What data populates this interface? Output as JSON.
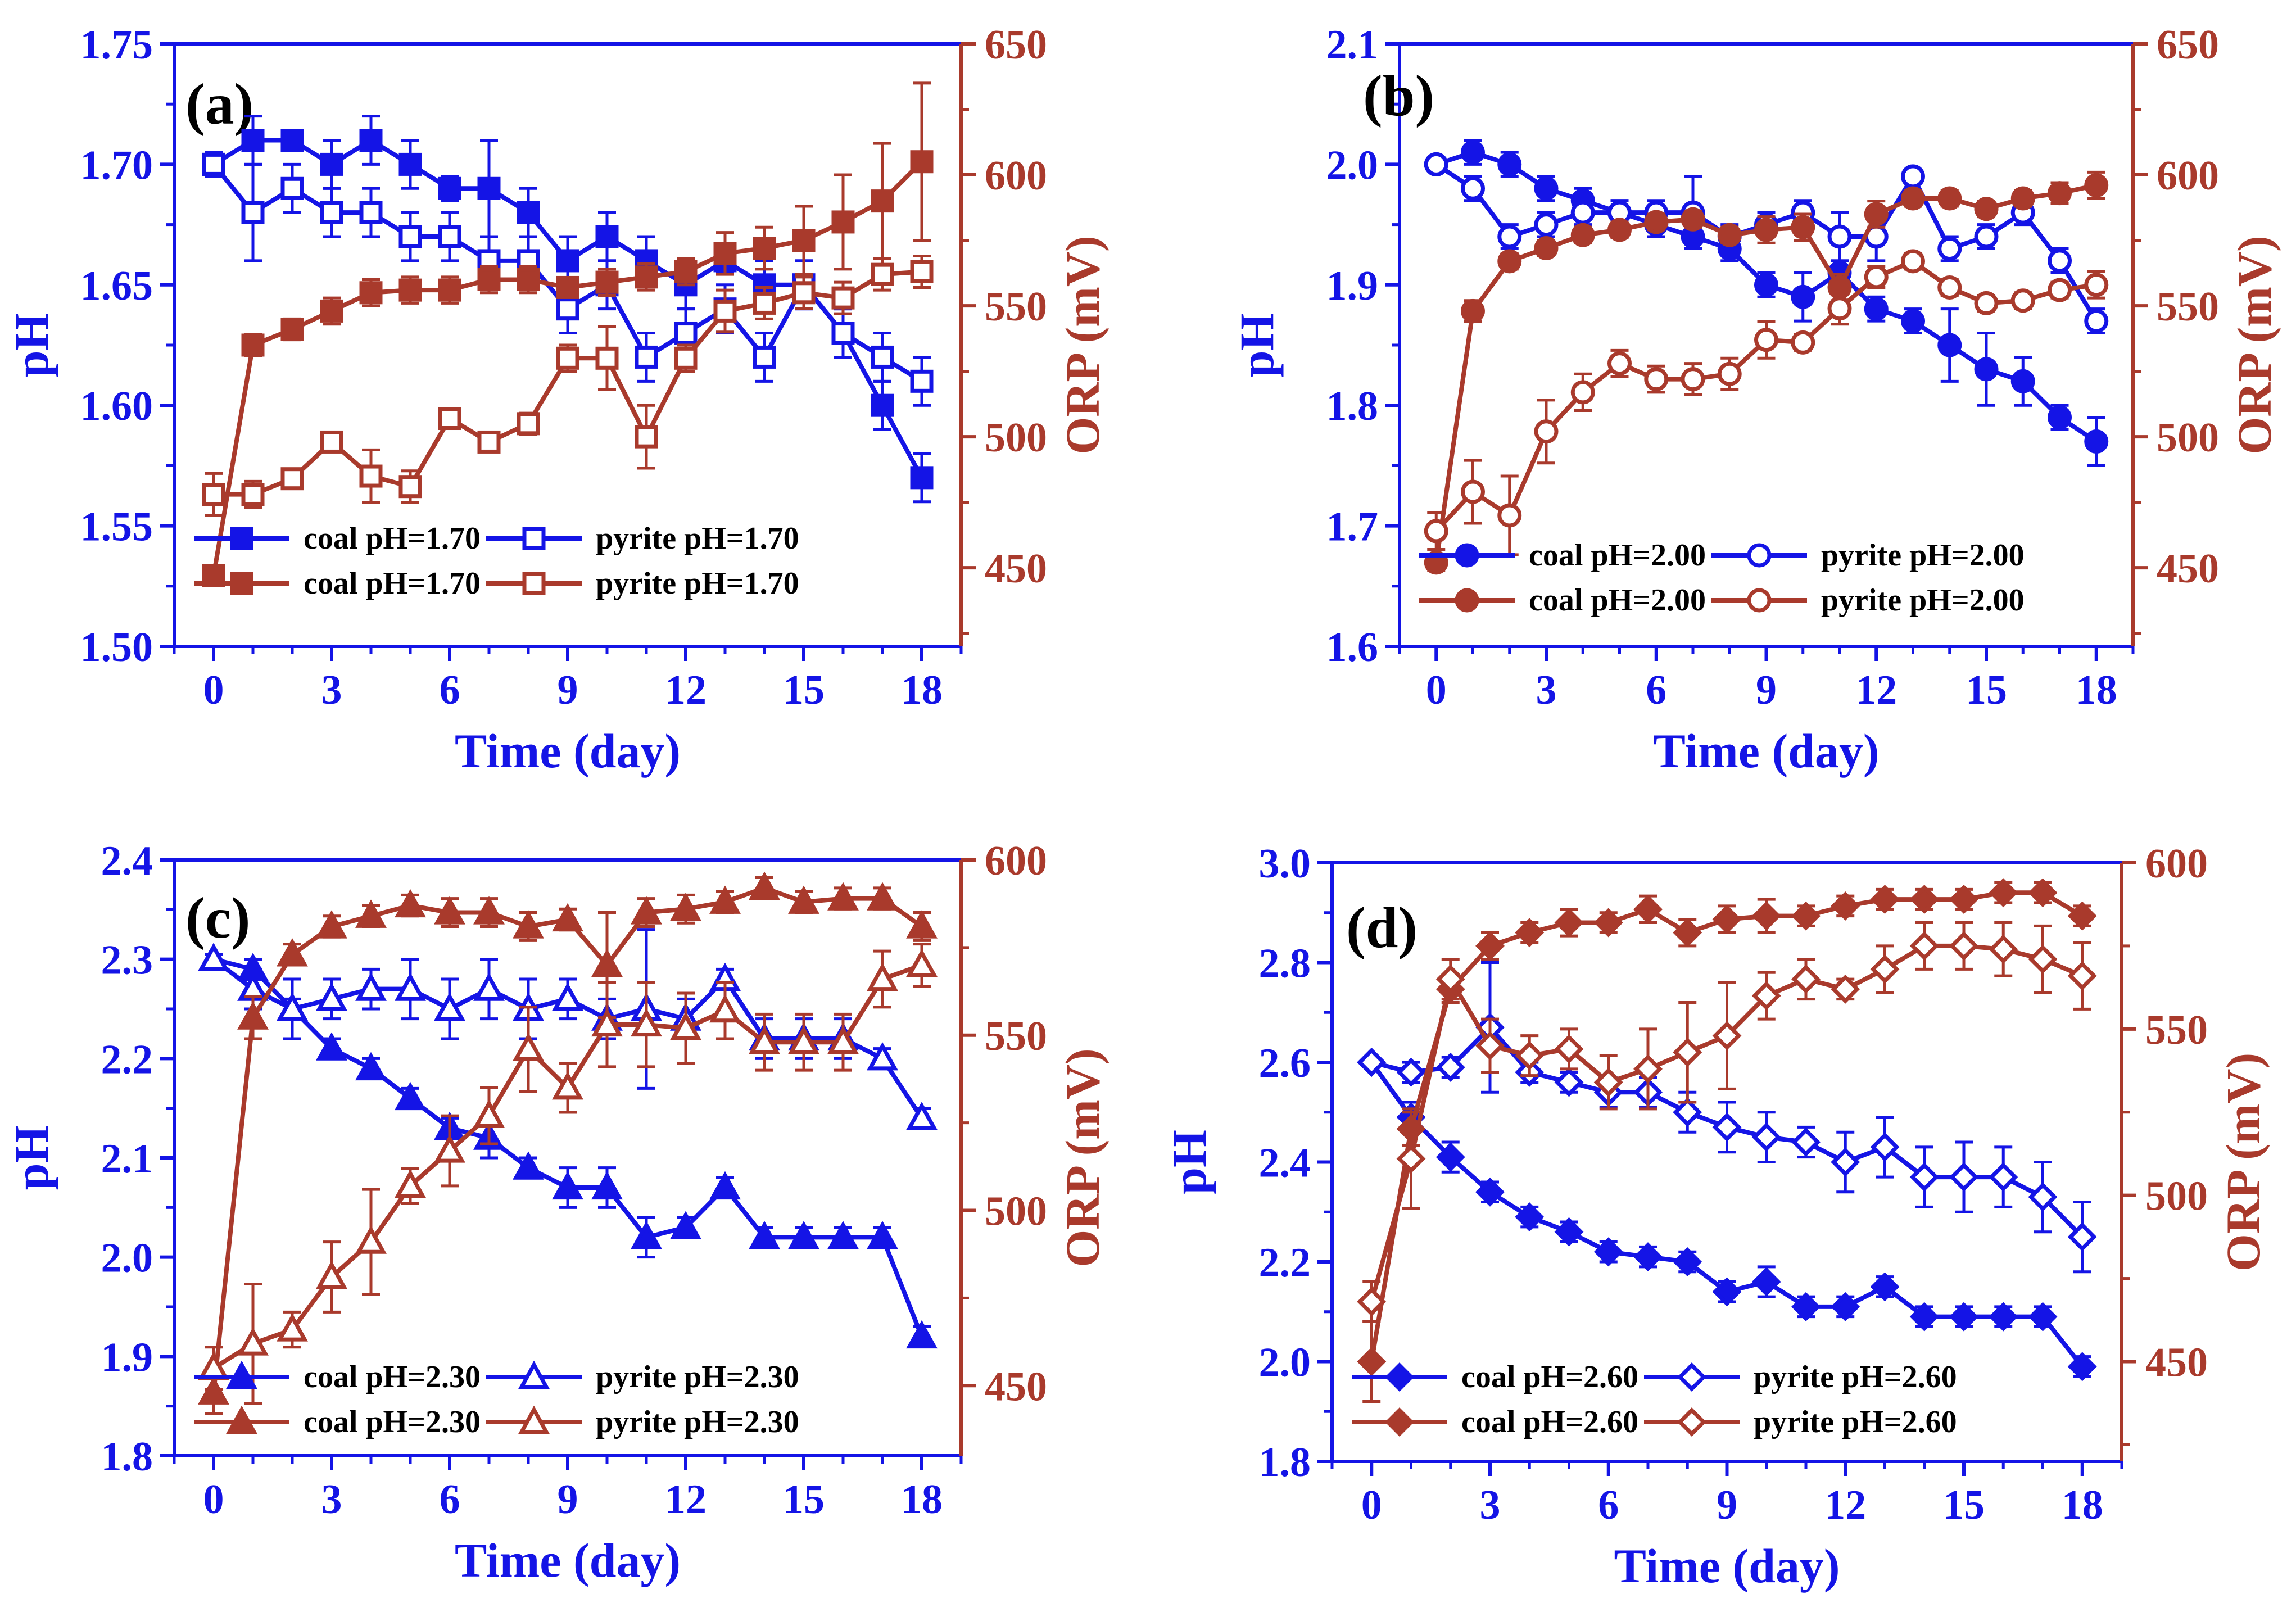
{
  "colors": {
    "ph": "#1414E6",
    "orp": "#A93A2C"
  },
  "chart_data": [
    {
      "type": "line",
      "panel_label": "(a)",
      "xlabel": "Time (day)",
      "ylabel_left": "pH",
      "ylabel_right": "ORP (mV)",
      "x_ticks": [
        0,
        3,
        6,
        9,
        12,
        15,
        18
      ],
      "x_tick_labels": [
        "0",
        "3",
        "6",
        "9",
        "12",
        "15",
        "18"
      ],
      "xlim": [
        -1,
        19
      ],
      "ylim_left": [
        1.5,
        1.75
      ],
      "y_left_ticks": [
        1.5,
        1.55,
        1.6,
        1.65,
        1.7,
        1.75
      ],
      "y_left_tick_labels": [
        "1.50",
        "1.55",
        "1.60",
        "1.65",
        "1.70",
        "1.75"
      ],
      "ylim_right": [
        420,
        650
      ],
      "y_right_ticks": [
        450,
        500,
        550,
        600,
        650
      ],
      "y_right_tick_labels": [
        "450",
        "500",
        "550",
        "600",
        "650"
      ],
      "x": [
        0,
        1,
        2,
        3,
        4,
        5,
        6,
        7,
        8,
        9,
        10,
        11,
        12,
        13,
        14,
        15,
        16,
        17,
        18
      ],
      "series": [
        {
          "name": "coal pH=1.70",
          "axis": "left",
          "color": "ph",
          "marker": "square",
          "filled": true,
          "values": [
            1.7,
            1.71,
            1.71,
            1.7,
            1.71,
            1.7,
            1.69,
            1.69,
            1.68,
            1.66,
            1.67,
            1.66,
            1.65,
            1.66,
            1.65,
            1.65,
            1.63,
            1.6,
            1.57
          ],
          "errors": [
            0.005,
            0.01,
            0.003,
            0.01,
            0.01,
            0.01,
            0.005,
            0.02,
            0.01,
            0.01,
            0.01,
            0.01,
            0.01,
            0.005,
            0.01,
            0.01,
            0.01,
            0.01,
            0.01
          ]
        },
        {
          "name": "pyrite pH=1.70",
          "axis": "left",
          "color": "ph",
          "marker": "square",
          "filled": false,
          "values": [
            1.7,
            1.68,
            1.69,
            1.68,
            1.68,
            1.67,
            1.67,
            1.66,
            1.66,
            1.64,
            1.65,
            1.62,
            1.63,
            1.64,
            1.62,
            1.65,
            1.63,
            1.62,
            1.61
          ],
          "errors": [
            0.005,
            0.02,
            0.01,
            0.01,
            0.01,
            0.01,
            0.01,
            0.01,
            0.01,
            0.01,
            0.01,
            0.01,
            0.01,
            0.01,
            0.01,
            0.01,
            0.01,
            0.01,
            0.01
          ]
        },
        {
          "name": "coal pH=1.70",
          "axis": "right",
          "color": "orp",
          "marker": "square",
          "filled": true,
          "values": [
            447,
            535,
            541,
            548,
            555,
            556,
            556,
            560,
            560,
            557,
            559,
            561,
            563,
            570,
            572,
            575,
            582,
            590,
            605
          ],
          "errors": [
            3,
            4,
            4,
            5,
            5,
            5,
            5,
            5,
            5,
            3,
            5,
            5,
            5,
            8,
            8,
            13,
            18,
            22,
            30
          ]
        },
        {
          "name": "pyrite pH=1.70",
          "axis": "right",
          "color": "orp",
          "marker": "square",
          "filled": false,
          "values": [
            478,
            478,
            484,
            498,
            485,
            481,
            507,
            498,
            505,
            530,
            530,
            500,
            530,
            548,
            551,
            555,
            553,
            562,
            563
          ],
          "errors": [
            8,
            5,
            3,
            3,
            10,
            6,
            3,
            3,
            4,
            5,
            12,
            12,
            5,
            8,
            6,
            6,
            6,
            6,
            6
          ]
        }
      ],
      "legend": [
        "coal pH=1.70",
        "pyrite pH=1.70",
        "coal pH=1.70",
        "pyrite pH=1.70"
      ]
    },
    {
      "type": "line",
      "panel_label": "(b)",
      "xlabel": "Time (day)",
      "ylabel_left": "pH",
      "ylabel_right": "ORP (mV)",
      "x_ticks": [
        0,
        3,
        6,
        9,
        12,
        15,
        18
      ],
      "x_tick_labels": [
        "0",
        "3",
        "6",
        "9",
        "12",
        "15",
        "18"
      ],
      "xlim": [
        -1,
        19
      ],
      "ylim_left": [
        1.6,
        2.1
      ],
      "y_left_ticks": [
        1.6,
        1.7,
        1.8,
        1.9,
        2.0,
        2.1
      ],
      "y_left_tick_labels": [
        "1.6",
        "1.7",
        "1.8",
        "1.9",
        "2.0",
        "2.1"
      ],
      "ylim_right": [
        420,
        650
      ],
      "y_right_ticks": [
        450,
        500,
        550,
        600,
        650
      ],
      "y_right_tick_labels": [
        "450",
        "500",
        "550",
        "600",
        "650"
      ],
      "x": [
        0,
        1,
        2,
        3,
        4,
        5,
        6,
        7,
        8,
        9,
        10,
        11,
        12,
        13,
        14,
        15,
        16,
        17,
        18
      ],
      "series": [
        {
          "name": "coal pH=2.00",
          "axis": "left",
          "color": "ph",
          "marker": "circle",
          "filled": true,
          "values": [
            2.0,
            2.01,
            2.0,
            1.98,
            1.97,
            1.96,
            1.95,
            1.94,
            1.93,
            1.9,
            1.89,
            1.91,
            1.88,
            1.87,
            1.85,
            1.83,
            1.82,
            1.79,
            1.77
          ],
          "errors": [
            0.005,
            0.01,
            0.01,
            0.01,
            0.01,
            0.01,
            0.01,
            0.01,
            0.01,
            0.01,
            0.02,
            0.01,
            0.01,
            0.01,
            0.03,
            0.03,
            0.02,
            0.01,
            0.02
          ]
        },
        {
          "name": "pyrite pH=2.00",
          "axis": "left",
          "color": "ph",
          "marker": "circle",
          "filled": false,
          "values": [
            2.0,
            1.98,
            1.94,
            1.95,
            1.96,
            1.96,
            1.96,
            1.96,
            1.94,
            1.95,
            1.96,
            1.94,
            1.94,
            1.99,
            1.93,
            1.94,
            1.96,
            1.92,
            1.87
          ],
          "errors": [
            0.005,
            0.01,
            0.01,
            0.01,
            0.01,
            0.01,
            0.01,
            0.03,
            0.01,
            0.01,
            0.01,
            0.02,
            0.02,
            0.005,
            0.01,
            0.01,
            0.01,
            0.01,
            0.01
          ]
        },
        {
          "name": "coal pH=2.00",
          "axis": "right",
          "color": "orp",
          "marker": "circle",
          "filled": true,
          "values": [
            452,
            548,
            567,
            572,
            577,
            579,
            582,
            583,
            577,
            579,
            580,
            557,
            585,
            591,
            591,
            587,
            591,
            593,
            596
          ],
          "errors": [
            3,
            4,
            3,
            3,
            3,
            3,
            3,
            3,
            3,
            5,
            5,
            5,
            5,
            3,
            3,
            3,
            3,
            4,
            5
          ]
        },
        {
          "name": "pyrite pH=2.00",
          "axis": "right",
          "color": "orp",
          "marker": "circle",
          "filled": false,
          "values": [
            464,
            479,
            470,
            502,
            517,
            528,
            522,
            522,
            524,
            537,
            536,
            549,
            561,
            567,
            557,
            551,
            552,
            556,
            558
          ],
          "errors": [
            7,
            12,
            15,
            12,
            7,
            5,
            5,
            6,
            6,
            7,
            3,
            6,
            4,
            3,
            3,
            3,
            3,
            3,
            5
          ]
        }
      ],
      "legend": [
        "coal pH=2.00",
        "pyrite pH=2.00",
        "coal pH=2.00",
        "pyrite pH=2.00"
      ]
    },
    {
      "type": "line",
      "panel_label": "(c)",
      "xlabel": "Time (day)",
      "ylabel_left": "pH",
      "ylabel_right": "ORP (mV)",
      "x_ticks": [
        0,
        3,
        6,
        9,
        12,
        15,
        18
      ],
      "x_tick_labels": [
        "0",
        "3",
        "6",
        "9",
        "12",
        "15",
        "18"
      ],
      "xlim": [
        -1,
        19
      ],
      "ylim_left": [
        1.8,
        2.4
      ],
      "y_left_ticks": [
        1.8,
        1.9,
        2.0,
        2.1,
        2.2,
        2.3,
        2.4
      ],
      "y_left_tick_labels": [
        "1.8",
        "1.9",
        "2.0",
        "2.1",
        "2.2",
        "2.3",
        "2.4"
      ],
      "ylim_right": [
        430,
        600
      ],
      "y_right_ticks": [
        450,
        500,
        550,
        600
      ],
      "y_right_tick_labels": [
        "450",
        "500",
        "550",
        "600"
      ],
      "x": [
        0,
        1,
        2,
        3,
        4,
        5,
        6,
        7,
        8,
        9,
        10,
        11,
        12,
        13,
        14,
        15,
        16,
        17,
        18
      ],
      "series": [
        {
          "name": "coal pH=2.30",
          "axis": "left",
          "color": "ph",
          "marker": "triangle",
          "filled": true,
          "values": [
            2.3,
            2.29,
            2.25,
            2.21,
            2.19,
            2.16,
            2.13,
            2.12,
            2.09,
            2.07,
            2.07,
            2.02,
            2.03,
            2.07,
            2.02,
            2.02,
            2.02,
            2.02,
            1.92
          ],
          "errors": [
            0.005,
            0.01,
            0.01,
            0.01,
            0.01,
            0.01,
            0.01,
            0.02,
            0.01,
            0.02,
            0.02,
            0.02,
            0.01,
            0.01,
            0.01,
            0.01,
            0.01,
            0.01,
            0.01
          ]
        },
        {
          "name": "pyrite pH=2.30",
          "axis": "left",
          "color": "ph",
          "marker": "triangle",
          "filled": false,
          "values": [
            2.3,
            2.27,
            2.25,
            2.26,
            2.27,
            2.27,
            2.25,
            2.27,
            2.25,
            2.26,
            2.24,
            2.25,
            2.24,
            2.28,
            2.22,
            2.22,
            2.22,
            2.2,
            2.14
          ],
          "errors": [
            0.005,
            0.02,
            0.03,
            0.02,
            0.02,
            0.03,
            0.03,
            0.03,
            0.03,
            0.02,
            0.02,
            0.08,
            0.02,
            0.01,
            0.02,
            0.02,
            0.02,
            0.01,
            0.01
          ]
        },
        {
          "name": "coal pH=2.30",
          "axis": "right",
          "color": "orp",
          "marker": "triangle",
          "filled": true,
          "values": [
            448,
            555,
            573,
            581,
            584,
            587,
            585,
            585,
            581,
            583,
            570,
            585,
            586,
            588,
            592,
            588,
            589,
            589,
            581
          ],
          "errors": [
            6,
            6,
            3,
            3,
            3,
            3,
            4,
            4,
            4,
            3,
            15,
            4,
            4,
            3,
            3,
            3,
            3,
            3,
            4
          ]
        },
        {
          "name": "pyrite pH=2.30",
          "axis": "right",
          "color": "orp",
          "marker": "triangle",
          "filled": false,
          "values": [
            455,
            462,
            466,
            481,
            491,
            507,
            517,
            527,
            546,
            535,
            553,
            553,
            552,
            557,
            548,
            548,
            548,
            566,
            570
          ],
          "errors": [
            6,
            17,
            5,
            10,
            15,
            5,
            10,
            8,
            12,
            7,
            12,
            12,
            10,
            8,
            8,
            8,
            8,
            8,
            6
          ]
        }
      ],
      "legend": [
        "coal pH=2.30",
        "pyrite pH=2.30",
        "coal pH=2.30",
        "pyrite pH=2.30"
      ]
    },
    {
      "type": "line",
      "panel_label": "(d)",
      "xlabel": "Time (day)",
      "ylabel_left": "pH",
      "ylabel_right": "ORP (mV)",
      "x_ticks": [
        0,
        3,
        6,
        9,
        12,
        15,
        18
      ],
      "x_tick_labels": [
        "0",
        "3",
        "6",
        "9",
        "12",
        "15",
        "18"
      ],
      "xlim": [
        -1,
        19
      ],
      "ylim_left": [
        1.8,
        3.0
      ],
      "y_left_ticks": [
        1.8,
        2.0,
        2.2,
        2.4,
        2.6,
        2.8,
        3.0
      ],
      "y_left_tick_labels": [
        "1.8",
        "2.0",
        "2.2",
        "2.4",
        "2.6",
        "2.8",
        "3.0"
      ],
      "ylim_right": [
        420,
        600
      ],
      "y_right_ticks": [
        450,
        500,
        550,
        600
      ],
      "y_right_tick_labels": [
        "450",
        "500",
        "550",
        "600"
      ],
      "x": [
        0,
        1,
        2,
        3,
        4,
        5,
        6,
        7,
        8,
        9,
        10,
        11,
        12,
        13,
        14,
        15,
        16,
        17,
        18
      ],
      "series": [
        {
          "name": "coal pH=2.60",
          "axis": "left",
          "color": "ph",
          "marker": "diamond",
          "filled": true,
          "values": [
            2.6,
            2.49,
            2.41,
            2.34,
            2.29,
            2.26,
            2.22,
            2.21,
            2.2,
            2.14,
            2.16,
            2.11,
            2.11,
            2.15,
            2.09,
            2.09,
            2.09,
            2.09,
            1.99
          ],
          "errors": [
            0.005,
            0.03,
            0.03,
            0.02,
            0.02,
            0.02,
            0.02,
            0.02,
            0.02,
            0.02,
            0.03,
            0.02,
            0.02,
            0.02,
            0.02,
            0.02,
            0.02,
            0.02,
            0.02
          ]
        },
        {
          "name": "pyrite pH=2.60",
          "axis": "left",
          "color": "ph",
          "marker": "diamond",
          "filled": false,
          "values": [
            2.6,
            2.58,
            2.59,
            2.67,
            2.58,
            2.56,
            2.54,
            2.54,
            2.5,
            2.47,
            2.45,
            2.44,
            2.4,
            2.43,
            2.37,
            2.37,
            2.37,
            2.33,
            2.25
          ],
          "errors": [
            0.005,
            0.02,
            0.02,
            0.13,
            0.02,
            0.02,
            0.03,
            0.03,
            0.04,
            0.05,
            0.05,
            0.03,
            0.06,
            0.06,
            0.06,
            0.07,
            0.06,
            0.07,
            0.07
          ]
        },
        {
          "name": "coal pH=2.60",
          "axis": "right",
          "color": "orp",
          "marker": "diamond",
          "filled": true,
          "values": [
            450,
            520,
            562,
            575,
            579,
            582,
            582,
            586,
            579,
            583,
            584,
            584,
            587,
            589,
            589,
            589,
            591,
            591,
            584
          ],
          "errors": [
            12,
            5,
            4,
            4,
            3,
            4,
            3,
            4,
            4,
            4,
            5,
            3,
            3,
            3,
            3,
            3,
            3,
            3,
            3
          ]
        },
        {
          "name": "pyrite pH=2.60",
          "axis": "right",
          "color": "orp",
          "marker": "diamond",
          "filled": false,
          "values": [
            468,
            511,
            565,
            545,
            542,
            544,
            534,
            538,
            543,
            548,
            560,
            565,
            562,
            568,
            575,
            575,
            574,
            571,
            566
          ],
          "errors": [
            6,
            15,
            6,
            8,
            6,
            6,
            8,
            12,
            15,
            16,
            7,
            6,
            3,
            7,
            7,
            7,
            8,
            10,
            10
          ]
        }
      ],
      "legend": [
        "coal pH=2.60",
        "pyrite pH=2.60",
        "coal pH=2.60",
        "pyrite pH=2.60"
      ]
    }
  ]
}
